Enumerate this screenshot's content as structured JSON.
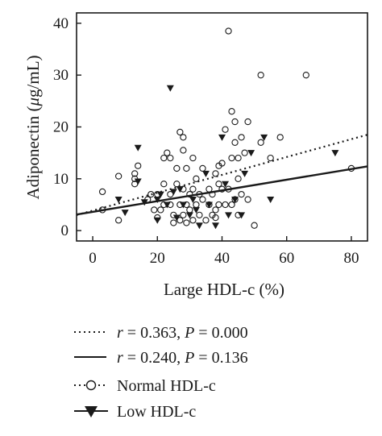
{
  "chart_data": {
    "type": "scatter",
    "title": "",
    "xlabel": "Large HDL-c (%)",
    "ylabel": "Adiponectin (μg/mL)",
    "xlim": [
      -5,
      85
    ],
    "ylim": [
      -2,
      42
    ],
    "xticks": [
      "0",
      "20",
      "40",
      "60",
      "80"
    ],
    "yticks": [
      "0",
      "10",
      "20",
      "30",
      "40"
    ],
    "grid": false,
    "legend_position": "below",
    "series": [
      {
        "name": "Normal HDL-c",
        "marker": "open-circle",
        "points": [
          [
            3,
            7.5
          ],
          [
            3,
            4
          ],
          [
            8,
            10.5
          ],
          [
            8,
            2
          ],
          [
            13,
            11
          ],
          [
            13,
            10
          ],
          [
            13,
            9
          ],
          [
            14,
            12.5
          ],
          [
            17,
            6
          ],
          [
            18,
            7
          ],
          [
            19,
            4
          ],
          [
            20,
            2.5
          ],
          [
            20,
            7
          ],
          [
            21,
            4
          ],
          [
            22,
            5
          ],
          [
            22,
            9
          ],
          [
            22,
            14
          ],
          [
            23,
            15
          ],
          [
            24,
            14
          ],
          [
            24,
            7
          ],
          [
            24,
            5
          ],
          [
            25,
            3
          ],
          [
            25,
            1.5
          ],
          [
            26,
            9
          ],
          [
            26,
            12
          ],
          [
            27,
            19
          ],
          [
            27,
            5
          ],
          [
            27,
            2
          ],
          [
            28,
            18
          ],
          [
            28,
            15.5
          ],
          [
            28,
            8
          ],
          [
            28,
            3
          ],
          [
            29,
            12
          ],
          [
            29,
            5
          ],
          [
            29,
            1.5
          ],
          [
            30,
            7
          ],
          [
            30,
            4
          ],
          [
            31,
            2
          ],
          [
            31,
            14
          ],
          [
            31,
            8
          ],
          [
            32,
            10
          ],
          [
            32,
            5
          ],
          [
            33,
            7
          ],
          [
            33,
            3
          ],
          [
            34,
            12
          ],
          [
            34,
            6
          ],
          [
            35,
            2
          ],
          [
            36,
            5
          ],
          [
            36,
            8
          ],
          [
            37,
            3
          ],
          [
            37,
            7
          ],
          [
            38,
            11
          ],
          [
            38,
            4
          ],
          [
            38,
            2.5
          ],
          [
            39,
            12.5
          ],
          [
            39,
            9
          ],
          [
            39,
            5
          ],
          [
            40,
            13
          ],
          [
            40,
            8
          ],
          [
            41,
            19.5
          ],
          [
            41,
            5
          ],
          [
            42,
            38.5
          ],
          [
            42,
            8
          ],
          [
            43,
            14
          ],
          [
            43,
            23
          ],
          [
            43,
            5
          ],
          [
            44,
            21
          ],
          [
            44,
            17
          ],
          [
            44,
            6
          ],
          [
            45,
            14
          ],
          [
            45,
            10
          ],
          [
            45,
            3
          ],
          [
            46,
            7
          ],
          [
            46,
            18
          ],
          [
            47,
            15
          ],
          [
            48,
            6
          ],
          [
            48,
            21
          ],
          [
            50,
            1
          ],
          [
            52,
            30
          ],
          [
            52,
            17
          ],
          [
            55,
            14
          ],
          [
            58,
            18
          ],
          [
            66,
            30
          ],
          [
            80,
            12
          ]
        ]
      },
      {
        "name": "Low HDL-c",
        "marker": "filled-triangle",
        "points": [
          [
            8,
            6
          ],
          [
            10,
            3.5
          ],
          [
            14,
            16
          ],
          [
            14,
            9.5
          ],
          [
            16,
            5.5
          ],
          [
            20,
            2
          ],
          [
            20,
            6
          ],
          [
            21,
            7
          ],
          [
            23,
            5
          ],
          [
            24,
            27.5
          ],
          [
            25,
            7.5
          ],
          [
            26,
            2.5
          ],
          [
            27,
            8
          ],
          [
            28,
            5
          ],
          [
            30,
            3
          ],
          [
            31,
            6
          ],
          [
            32,
            4
          ],
          [
            33,
            1
          ],
          [
            35,
            11
          ],
          [
            36,
            5
          ],
          [
            38,
            1
          ],
          [
            40,
            18
          ],
          [
            41,
            9
          ],
          [
            42,
            3
          ],
          [
            44,
            6
          ],
          [
            46,
            3
          ],
          [
            47,
            11
          ],
          [
            49,
            15
          ],
          [
            53,
            18
          ],
          [
            55,
            6
          ],
          [
            75,
            15
          ]
        ]
      },
      {
        "name": "Normal HDL-c fit",
        "line": "dotted",
        "x": [
          -5,
          85
        ],
        "y": [
          3.0,
          18.5
        ]
      },
      {
        "name": "Low HDL-c fit",
        "line": "solid",
        "x": [
          -5,
          85
        ],
        "y": [
          3.1,
          12.4
        ]
      }
    ],
    "legend": [
      {
        "symbol": "dotted-line",
        "r_label": "r",
        "text": " = 0.363, ",
        "p_label": "P",
        "value": " = 0.000"
      },
      {
        "symbol": "solid-line",
        "r_label": "r",
        "text": " = 0.240, ",
        "p_label": "P",
        "value": " = 0.136"
      },
      {
        "symbol": "dotted-circle",
        "label": "Normal HDL-c"
      },
      {
        "symbol": "solid-triangle",
        "label": "Low HDL-c"
      }
    ]
  },
  "ylabel_parts": {
    "prefix": "Adiponectin (",
    "mu": "μ",
    "suffix": "g/mL)"
  }
}
